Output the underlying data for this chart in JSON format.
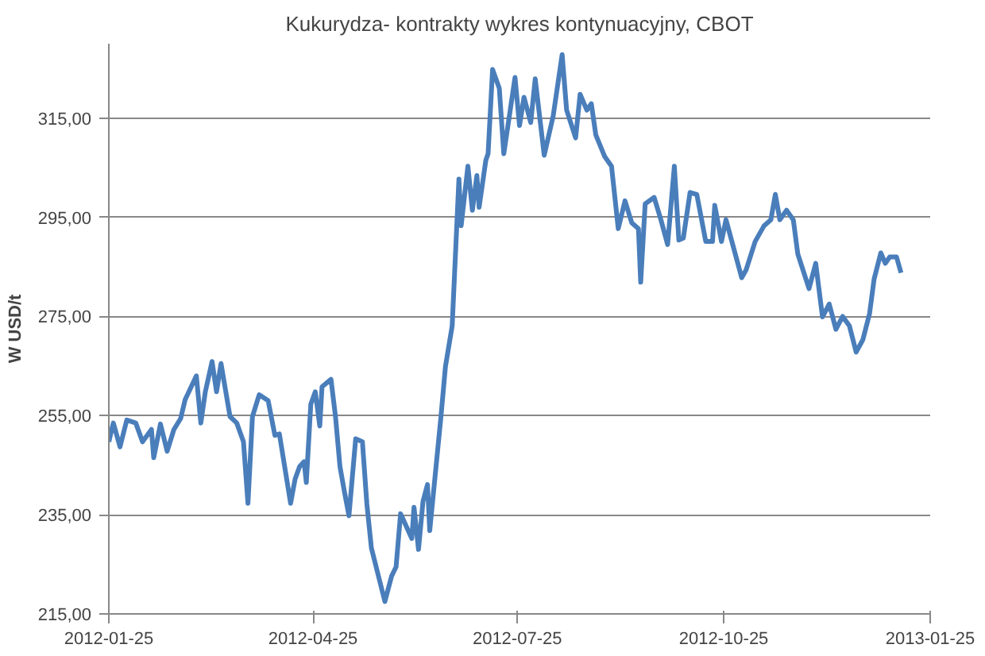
{
  "chart_data": {
    "type": "line",
    "title": "Kukurydza- kontrakty wykres kontynuacyjny, CBOT",
    "ylabel": "W USD/t",
    "x": [
      "2012-01-25",
      "2012-01-27",
      "2012-01-30",
      "2012-02-02",
      "2012-02-06",
      "2012-02-09",
      "2012-02-13",
      "2012-02-14",
      "2012-02-17",
      "2012-02-20",
      "2012-02-23",
      "2012-02-26",
      "2012-02-28",
      "2012-03-04",
      "2012-03-06",
      "2012-03-08",
      "2012-03-11",
      "2012-03-13",
      "2012-03-15",
      "2012-03-19",
      "2012-03-22",
      "2012-03-25",
      "2012-03-27",
      "2012-03-29",
      "2012-04-01",
      "2012-04-05",
      "2012-04-08",
      "2012-04-10",
      "2012-04-15",
      "2012-04-17",
      "2012-04-19",
      "2012-04-21",
      "2012-04-22",
      "2012-04-24",
      "2012-04-26",
      "2012-04-28",
      "2012-04-29",
      "2012-05-03",
      "2012-05-05",
      "2012-05-07",
      "2012-05-09",
      "2012-05-11",
      "2012-05-14",
      "2012-05-17",
      "2012-05-19",
      "2012-05-21",
      "2012-05-27",
      "2012-05-30",
      "2012-06-01",
      "2012-06-03",
      "2012-06-08",
      "2012-06-09",
      "2012-06-11",
      "2012-06-13",
      "2012-06-15",
      "2012-06-16",
      "2012-06-21",
      "2012-06-23",
      "2012-06-26",
      "2012-06-29",
      "2012-06-30",
      "2012-07-03",
      "2012-07-05",
      "2012-07-07",
      "2012-07-08",
      "2012-07-11",
      "2012-07-12",
      "2012-07-14",
      "2012-07-17",
      "2012-07-19",
      "2012-07-24",
      "2012-07-26",
      "2012-07-28",
      "2012-07-31",
      "2012-08-02",
      "2012-08-06",
      "2012-08-10",
      "2012-08-14",
      "2012-08-16",
      "2012-08-20",
      "2012-08-22",
      "2012-08-25",
      "2012-08-27",
      "2012-08-29",
      "2012-09-02",
      "2012-09-05",
      "2012-09-08",
      "2012-09-11",
      "2012-09-14",
      "2012-09-17",
      "2012-09-18",
      "2012-09-20",
      "2012-09-24",
      "2012-09-27",
      "2012-09-30",
      "2012-10-03",
      "2012-10-05",
      "2012-10-07",
      "2012-10-10",
      "2012-10-13",
      "2012-10-17",
      "2012-10-20",
      "2012-10-21",
      "2012-10-24",
      "2012-10-26",
      "2012-10-29",
      "2012-11-02",
      "2012-11-04",
      "2012-11-08",
      "2012-11-12",
      "2012-11-15",
      "2012-11-17",
      "2012-11-19",
      "2012-11-22",
      "2012-11-25",
      "2012-11-27",
      "2012-12-02",
      "2012-12-05",
      "2012-12-08",
      "2012-12-11",
      "2012-12-14",
      "2012-12-17",
      "2012-12-20",
      "2012-12-23",
      "2012-12-26",
      "2012-12-29",
      "2012-12-31",
      "2013-01-03",
      "2013-01-05",
      "2013-01-07",
      "2013-01-10",
      "2013-01-12"
    ],
    "series": [
      {
        "color": "#4a7ebb",
        "values": [
          249.7,
          253.5,
          248.7,
          254.1,
          253.5,
          249.7,
          252.2,
          246.5,
          253.3,
          247.8,
          252.2,
          254.4,
          258.2,
          263,
          253.5,
          259.8,
          265.9,
          259.8,
          265.5,
          254.8,
          253.5,
          249.7,
          237.3,
          254.8,
          259.2,
          258,
          251,
          251.3,
          237.3,
          242.2,
          244.7,
          245.7,
          241.5,
          257.3,
          259.8,
          252.9,
          260.8,
          262.3,
          254.8,
          244.7,
          239.6,
          234.8,
          250.3,
          249.7,
          237.1,
          228.3,
          217.5,
          222.6,
          224.5,
          235.2,
          230.2,
          236.5,
          228,
          237.7,
          241.1,
          231.8,
          254.8,
          264.9,
          273.1,
          302.7,
          293.3,
          305.3,
          296.4,
          303.4,
          297,
          306.5,
          307.8,
          324.8,
          321,
          307.8,
          323.2,
          313.5,
          319.2,
          314.1,
          322.9,
          307.5,
          315.4,
          327.8,
          316.6,
          311,
          319.8,
          316.6,
          317.9,
          311.6,
          307.2,
          305.3,
          292.7,
          298.3,
          293.9,
          292.7,
          281.9,
          297.7,
          299,
          294.5,
          289.5,
          305.3,
          290.4,
          290.8,
          300,
          299.6,
          290.1,
          290.1,
          297.4,
          290.1,
          294.5,
          289.5,
          282.8,
          284.4,
          290.1,
          293.3,
          294.5,
          299.6,
          294.5,
          296.4,
          294.5,
          287.6,
          280.6,
          285.7,
          274.9,
          277.5,
          272.4,
          275,
          273.1,
          267.8,
          270.3,
          275.6,
          282.5,
          287.8,
          285.7,
          287,
          287,
          283.8
        ]
      }
    ],
    "xlim": [
      "2012-01-25",
      "2013-01-25"
    ],
    "xticks": [
      {
        "value": "2012-01-25",
        "label": "2012-01-25"
      },
      {
        "value": "2012-04-25",
        "label": "2012-04-25"
      },
      {
        "value": "2012-07-25",
        "label": "2012-07-25"
      },
      {
        "value": "2012-10-25",
        "label": "2012-10-25"
      },
      {
        "value": "2013-01-25",
        "label": "2013-01-25"
      }
    ],
    "ylim": [
      215,
      330
    ],
    "yticks": [
      {
        "value": 215,
        "label": "215,00"
      },
      {
        "value": 235,
        "label": "235,00"
      },
      {
        "value": 255,
        "label": "255,00"
      },
      {
        "value": 275,
        "label": "275,00"
      },
      {
        "value": 295,
        "label": "295,00"
      },
      {
        "value": 315,
        "label": "315,00"
      }
    ],
    "grid": "y",
    "marker": "none",
    "line_style": "solid"
  }
}
